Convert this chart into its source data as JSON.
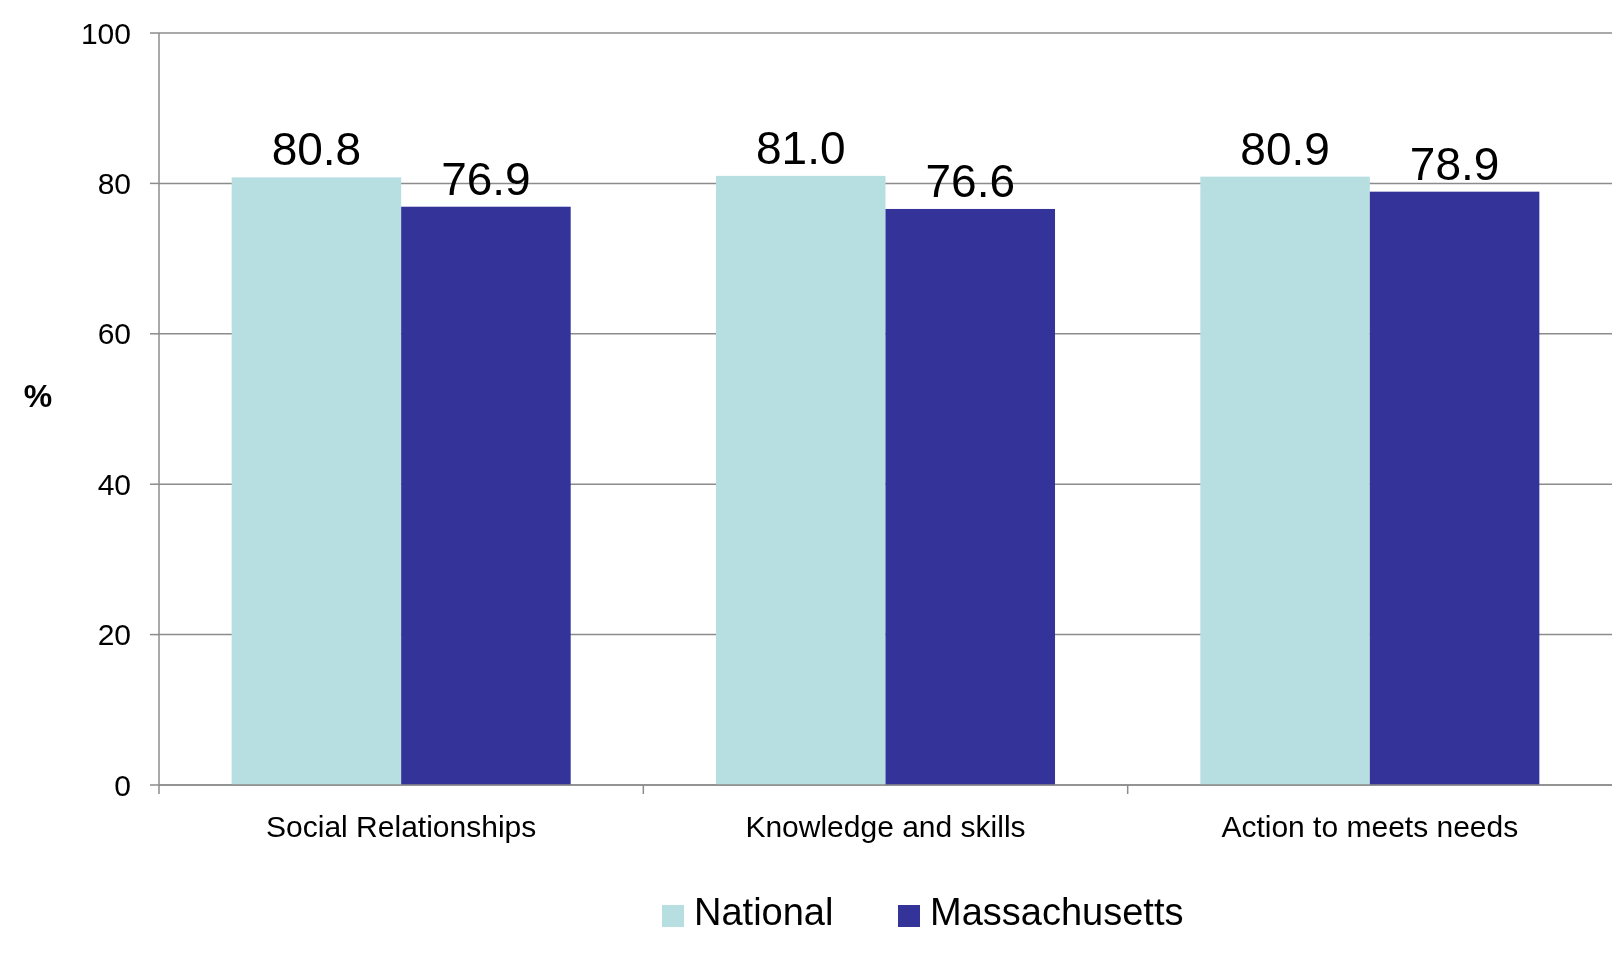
{
  "chart_data": {
    "type": "bar",
    "ylabel": "%",
    "categories": [
      "Social Relationships",
      "Knowledge and skills",
      "Action to meets needs"
    ],
    "series": [
      {
        "name": "National",
        "color": "#b7dfe1",
        "values": [
          80.8,
          81.0,
          80.9
        ],
        "value_labels": [
          "80.8",
          "81.0",
          "80.9"
        ]
      },
      {
        "name": "Massachusetts",
        "color": "#333399",
        "values": [
          76.9,
          76.6,
          78.9
        ],
        "value_labels": [
          "76.9",
          "76.6",
          "78.9"
        ]
      }
    ],
    "ylim": [
      0,
      100
    ],
    "yticks": [
      0,
      20,
      40,
      60,
      80,
      100
    ],
    "grid": "y",
    "legend": "bottom"
  }
}
